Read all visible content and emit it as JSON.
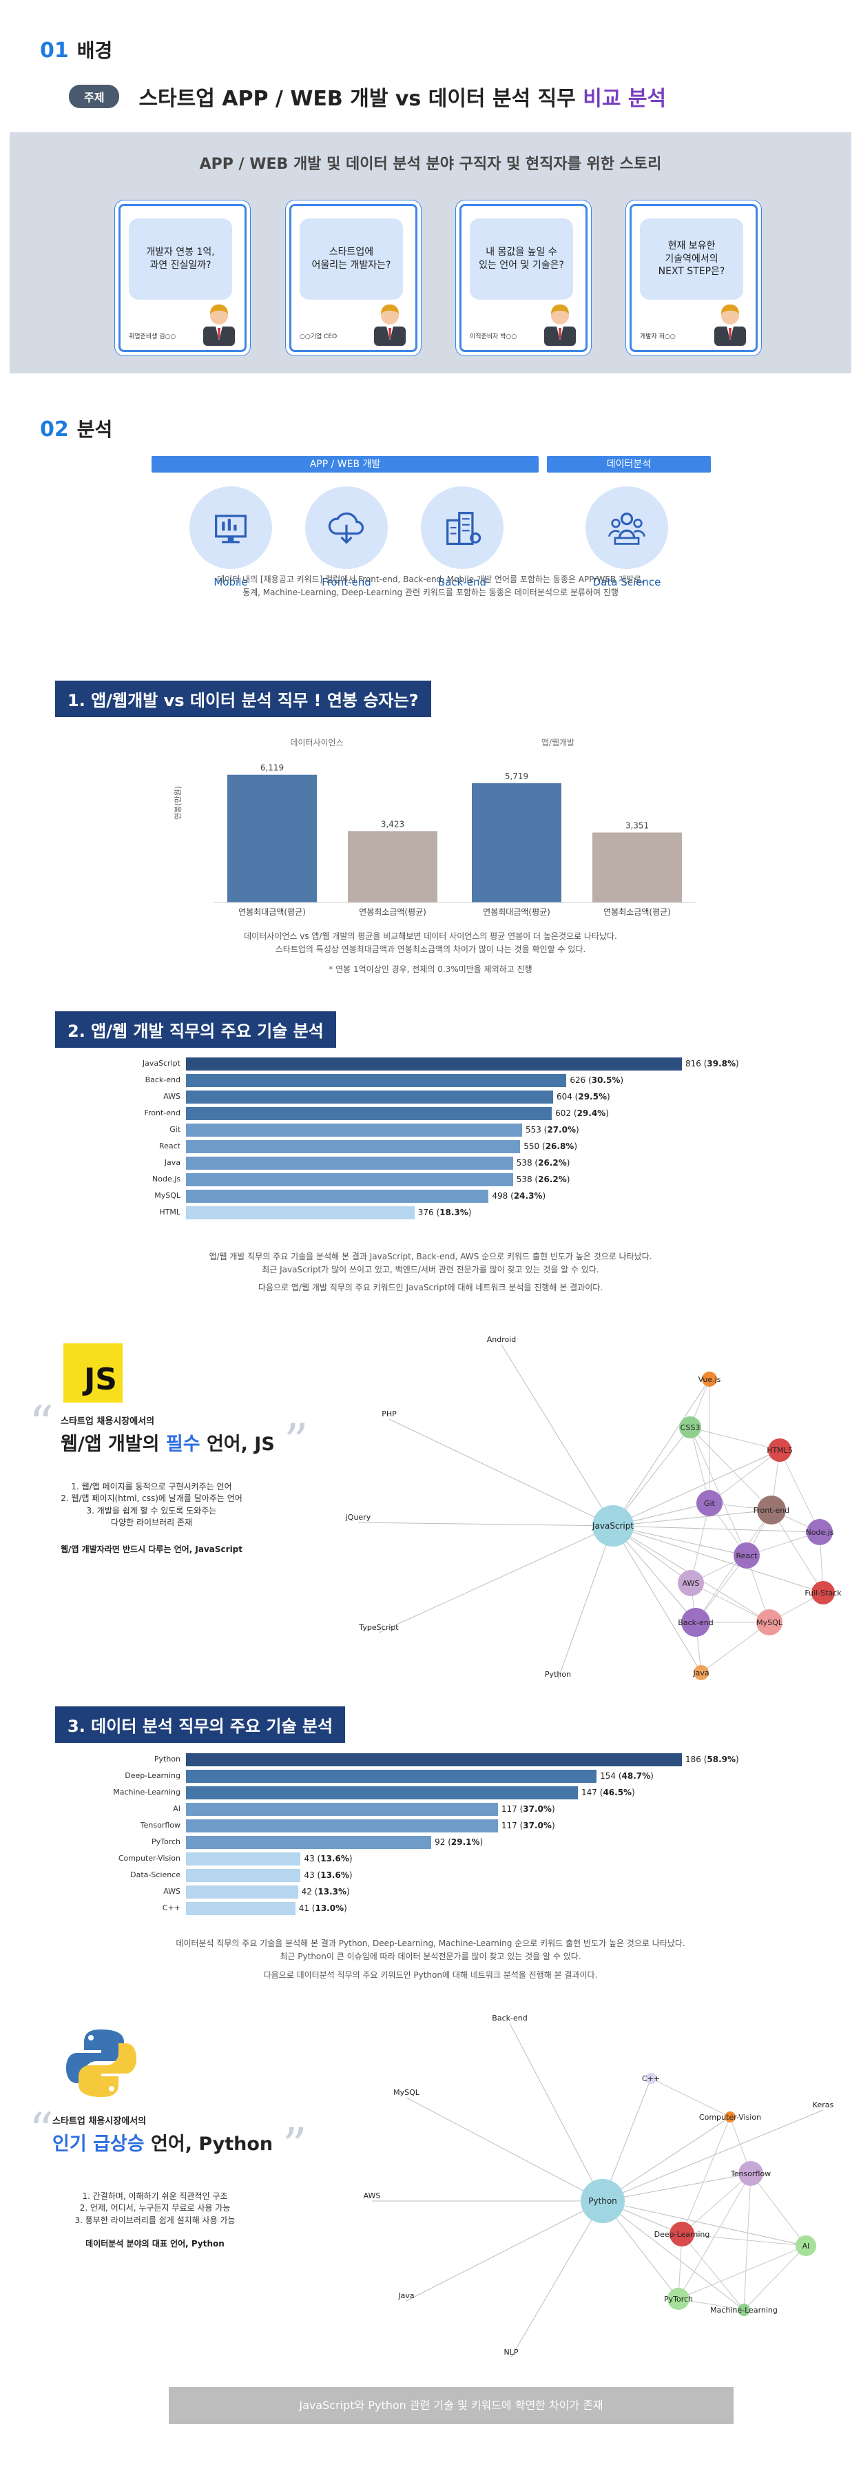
{
  "sec1": {
    "num": "01",
    "title": "배경"
  },
  "topic": {
    "tag": "주제",
    "headline_main": "스타트업 APP / WEB 개발 vs 데이터 분석 직무",
    "headline_accent": "비교 분석"
  },
  "story": {
    "title": "APP / WEB 개발 및 데이터 분석 분야 구직자 및 현직자를 위한 스토리",
    "cards": [
      {
        "text": "개발자 연봉 1억,\n과연 진실일까?",
        "label": "취업준비생 김○○"
      },
      {
        "text": "스타트업에\n어울리는 개발자는?",
        "label": "○○기업 CEO"
      },
      {
        "text": "내 몸값을 높일 수\n있는 언어 및 기술은?",
        "label": "이직준비자 박○○"
      },
      {
        "text": "현재 보유한\n기술역에서의\nNEXT STEP은?",
        "label": "개발자 허○○"
      }
    ]
  },
  "sec2": {
    "num": "02",
    "title": "분석"
  },
  "categories": {
    "appweb": "APP / WEB 개발",
    "data": "데이터분석"
  },
  "roles": [
    {
      "label": "Mobile",
      "icon": "mobile-icon"
    },
    {
      "label": "Front-end",
      "icon": "cloud-download-icon"
    },
    {
      "label": "Back-end",
      "icon": "server-building-icon"
    },
    {
      "label": "Data Science",
      "icon": "team-icon"
    }
  ],
  "role_note": "데이터 내의 [채용공고 키워드] 컬럼에서 Front-end, Back-end, Mobile 개발 언어를 포함하는 동종은 APP/WEB 개발로,\n통계, Machine-Learning, Deep-Learning 관련 키워드를 포함하는 동종은 데이터분석으로 분류하여 진행",
  "q1": {
    "title": "1. 앱/웹개발 vs 데이터 분석 직무 ! 연봉 승자는?",
    "group_labels": [
      "데이터사이언스",
      "앱/웹개발"
    ],
    "ylabel": "연봉(만원)",
    "note": "데이터사이언스 vs 앱/웹 개발의 평균을 비교해보면 데이터 사이언스의 평균 연봉이 더 높은것으로 나타났다.\n스타트업의 특성상 연봉최대금액과 연봉최소금액의 차이가 많이 나는 것을 확인할 수 있다.",
    "footnote": "* 연봉 1억이상인 경우, 전체의 0.3%미만을 제외하고 진행"
  },
  "q2": {
    "title": "2. 앱/웹 개발 직무의 주요 기술 분석",
    "note1": "앱/웹 개발 직무의 주요 기술을 분석해 본 결과 JavaScript, Back-end, AWS 순으로 키워드 출현 빈도가 높은 것으로 나타났다.\n최근 JavaScript가 많이 쓰이고 있고, 백엔드/서버 관련 전문가를 많이 찾고 있는 것을 알 수 있다.",
    "note2": "다음으로 앱/웹 개발 직무의 주요 키워드인 JavaScript에 대해 네트워크 분석을 진행해 본 결과이다."
  },
  "js_panel": {
    "badge": "JS",
    "subtitle": "스타트업 채용시장에서의",
    "title_pre": "웹/앱 개발의 ",
    "title_accent": "필수",
    "title_post": " 언어, JS",
    "points": [
      "1. 웹/앱 페이지를 동적으로 구현시켜주는 언어",
      "2. 웹/앱 페이지(html, css)에 날개를 달아주는 언어",
      "3. 개발을 쉽게 할 수 있도록 도와주는",
      "다양한 라이브러리 존재"
    ],
    "conclusion": "웹/앱 개발자라면 반드시 다루는 언어, JavaScript"
  },
  "q3": {
    "title": "3. 데이터 분석 직무의 주요 기술 분석",
    "note1": "데이터분석 직무의 주요 기술을 분석해 본 결과 Python, Deep-Learning, Machine-Learning 순으로 키워드 출현 빈도가 높은 것으로 나타났다.\n최근 Python이 큰 이슈임에 따라 데이터 분석전문가를 많이 찾고 있는 것을 알 수 있다.",
    "note2": "다음으로 데이터분석 직무의 주요 키워드인 Python에 대해 네트워크 분석을 진행해 본 결과이다."
  },
  "py_panel": {
    "subtitle": "스타트업 채용시장에서의",
    "title_pre": "인기 급상승",
    "title_post": " 언어, Python",
    "points": [
      "1. 간결하며, 이해하기 쉬운 직관적인 구조",
      "2. 언제, 어디서, 누구든지 무료로 사용 가능",
      "3. 풍부한 라이브러리를 쉽게 설치해 사용 가능"
    ],
    "conclusion": "데이터분석 분야의 대표 언어, Python"
  },
  "footer": "JavaScript와 Python 관련 기술 및 키워드에 확연한 차이가 존재",
  "chart_data": [
    {
      "type": "bar",
      "title": "",
      "categories": [
        "연봉최대금액(평균)",
        "연봉최소금액(평균)",
        "연봉최대금액(평균)",
        "연봉최소금액(평균)"
      ],
      "groups": [
        "데이터사이언스",
        "데이터사이언스",
        "앱/웹개발",
        "앱/웹개발"
      ],
      "values": [
        6119,
        3423,
        5719,
        3351
      ],
      "value_labels": [
        "6,119",
        "3,423",
        "5,719",
        "3,351"
      ],
      "ylabel": "연봉(만원)",
      "ylim": [
        0,
        7000
      ],
      "colors": [
        "#4f79a8",
        "#bbaea9",
        "#4f79a8",
        "#bbaea9"
      ]
    },
    {
      "type": "bar",
      "orientation": "horizontal",
      "categories": [
        "JavaScript",
        "Back-end",
        "AWS",
        "Front-end",
        "Git",
        "React",
        "Java",
        "Node.js",
        "MySQL",
        "HTML"
      ],
      "values": [
        816,
        626,
        604,
        602,
        553,
        550,
        538,
        538,
        498,
        376
      ],
      "percents": [
        "39.8%",
        "30.5%",
        "29.5%",
        "29.4%",
        "27.0%",
        "26.8%",
        "26.2%",
        "26.2%",
        "24.3%",
        "18.3%"
      ],
      "xlim": [
        0,
        816
      ]
    },
    {
      "type": "bar",
      "orientation": "horizontal",
      "categories": [
        "Python",
        "Deep-Learning",
        "Machine-Learning",
        "AI",
        "Tensorflow",
        "PyTorch",
        "Computer-Vision",
        "Data-Science",
        "AWS",
        "C++"
      ],
      "values": [
        186,
        154,
        147,
        117,
        117,
        92,
        43,
        43,
        42,
        41
      ],
      "percents": [
        "58.9%",
        "48.7%",
        "46.5%",
        "37.0%",
        "37.0%",
        "29.1%",
        "13.6%",
        "13.6%",
        "13.3%",
        "13.0%"
      ],
      "xlim": [
        0,
        186
      ]
    }
  ],
  "network_js": {
    "center": "JavaScript",
    "nodes": [
      "Android",
      "PHP",
      "jQuery",
      "TypeScript",
      "Python",
      "Vue.js",
      "CSS3",
      "HTML5",
      "Git",
      "Front-end",
      "Node.js",
      "React",
      "AWS",
      "Full-Stack",
      "Back-end",
      "MySQL",
      "Java"
    ]
  },
  "network_py": {
    "center": "Python",
    "nodes": [
      "Back-end",
      "MySQL",
      "AWS",
      "Java",
      "NLP",
      "C++",
      "Computer-Vision",
      "Keras",
      "Tensorflow",
      "Deep-Learning",
      "AI",
      "PyTorch",
      "Machine-Learning"
    ]
  }
}
